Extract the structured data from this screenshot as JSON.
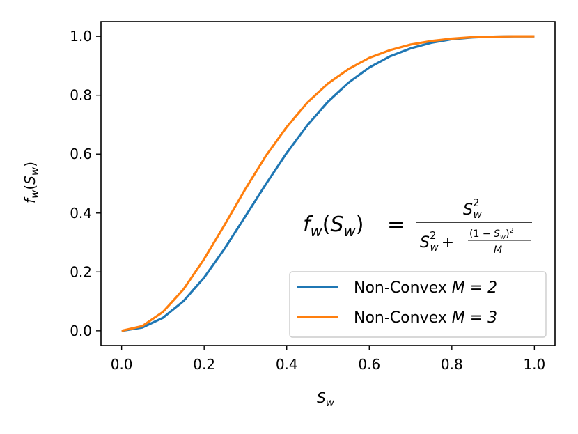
{
  "chart_data": {
    "type": "line",
    "xlabel": "S",
    "xlabel_sub": "w",
    "ylabel": "f",
    "ylabel_sub": "w",
    "ylabel_arg": "S",
    "xlim": [
      -0.05,
      1.05
    ],
    "ylim": [
      -0.05,
      1.05
    ],
    "xticks": [
      0.0,
      0.2,
      0.4,
      0.6,
      0.8,
      1.0
    ],
    "xtick_labels": [
      "0.0",
      "0.2",
      "0.4",
      "0.6",
      "0.8",
      "1.0"
    ],
    "yticks": [
      0.0,
      0.2,
      0.4,
      0.6,
      0.8,
      1.0
    ],
    "ytick_labels": [
      "0.0",
      "0.2",
      "0.4",
      "0.6",
      "0.8",
      "1.0"
    ],
    "grid": false,
    "legend_position": "lower-right",
    "series": [
      {
        "name": "Non-Convex",
        "name_param": "M = 2",
        "color": "#1f77b4",
        "x": [
          0.0,
          0.05,
          0.1,
          0.15,
          0.2,
          0.25,
          0.3,
          0.35,
          0.4,
          0.45,
          0.5,
          0.55,
          0.6,
          0.65,
          0.7,
          0.75,
          0.8,
          0.85,
          0.9,
          0.95,
          1.0
        ],
        "y": [
          0.0,
          0.011,
          0.044,
          0.101,
          0.181,
          0.28,
          0.389,
          0.499,
          0.604,
          0.698,
          0.778,
          0.843,
          0.894,
          0.932,
          0.959,
          0.978,
          0.99,
          0.996,
          0.999,
          1.0,
          1.0
        ]
      },
      {
        "name": "Non-Convex",
        "name_param": "M = 3",
        "color": "#ff7f0e",
        "x": [
          0.0,
          0.05,
          0.1,
          0.15,
          0.2,
          0.25,
          0.3,
          0.35,
          0.4,
          0.45,
          0.5,
          0.55,
          0.6,
          0.65,
          0.7,
          0.75,
          0.8,
          0.85,
          0.9,
          0.95,
          1.0
        ],
        "y": [
          0.0,
          0.016,
          0.064,
          0.141,
          0.244,
          0.361,
          0.482,
          0.595,
          0.692,
          0.775,
          0.84,
          0.889,
          0.927,
          0.953,
          0.972,
          0.984,
          0.992,
          0.997,
          0.999,
          1.0,
          1.0
        ]
      }
    ],
    "annotation": {
      "lhs_f": "f",
      "lhs_sub": "w",
      "lhs_S": "S",
      "equals": "=",
      "num_S": "S",
      "num_sub": "w",
      "num_sup": "2",
      "den_S": "S",
      "den_sub": "w",
      "den_sup": "2",
      "den_plus": "+",
      "inner_num_open": "(1 − ",
      "inner_num_S": "S",
      "inner_num_sub": "w",
      "inner_num_close": ")",
      "inner_num_sup": "2",
      "inner_den": "M"
    }
  }
}
